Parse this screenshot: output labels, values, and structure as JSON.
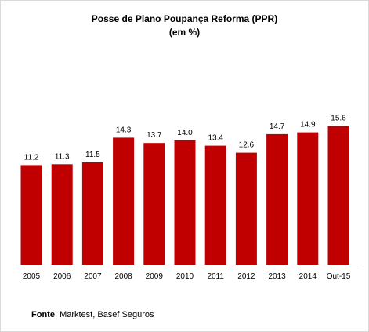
{
  "chart_data": {
    "type": "bar",
    "title": "Posse de Plano Poupança Reforma (PPR)",
    "subtitle": "(em %)",
    "categories": [
      "2005",
      "2006",
      "2007",
      "2008",
      "2009",
      "2010",
      "2011",
      "2012",
      "2013",
      "2014",
      "Out-15"
    ],
    "values": [
      11.2,
      11.3,
      11.5,
      14.3,
      13.7,
      14.0,
      13.4,
      12.6,
      14.7,
      14.9,
      15.6
    ],
    "value_labels": [
      "11.2",
      "11.3",
      "11.5",
      "14.3",
      "13.7",
      "14.0",
      "13.4",
      "12.6",
      "14.7",
      "14.9",
      "15.6"
    ],
    "xlabel": "",
    "ylabel": "",
    "bar_color": "#c00000",
    "grid": false,
    "legend": "none"
  },
  "source": {
    "label": "Fonte",
    "text": ": Marktest, Basef Seguros"
  }
}
